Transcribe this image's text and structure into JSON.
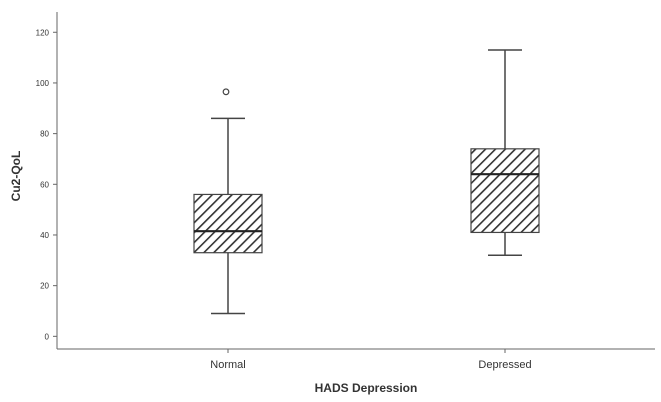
{
  "chart_data": {
    "type": "boxplot",
    "xlabel": "HADS Depression",
    "ylabel": "Cu2-QoL",
    "ylim": [
      -5,
      128
    ],
    "yticks": [
      0,
      20,
      40,
      60,
      80,
      100,
      120
    ],
    "grid": false,
    "legend": "none",
    "categories": [
      "Normal",
      "Depressed"
    ],
    "boxes": [
      {
        "category": "Normal",
        "whisker_low": 9,
        "q1": 33,
        "median": 41.5,
        "q3": 56,
        "whisker_high": 86,
        "outliers": [
          96.5
        ],
        "outlier_label": ""
      },
      {
        "category": "Depressed",
        "whisker_low": 32,
        "q1": 41,
        "median": 64,
        "q3": 74,
        "whisker_high": 113,
        "outliers": [],
        "outlier_label": ""
      }
    ],
    "colors": {
      "box_fill": "#ffffff",
      "hatch": "#333333",
      "stroke": "#444444",
      "median": "#222222",
      "axis": "#666666",
      "text": "#333333"
    }
  }
}
